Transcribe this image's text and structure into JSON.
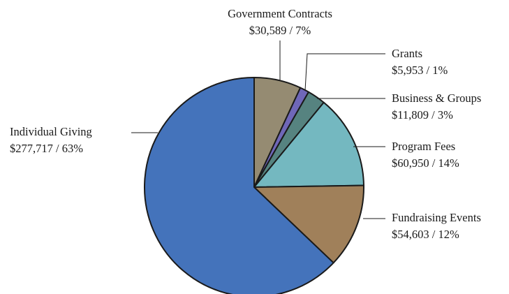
{
  "chart_data": {
    "type": "pie",
    "title": "",
    "slices": [
      {
        "name": "Government Contracts",
        "value": 30589,
        "value_label": "$30,589",
        "percent_label": "7%",
        "color": "#958b72"
      },
      {
        "name": "Grants",
        "value": 5953,
        "value_label": "$5,953",
        "percent_label": "1%",
        "color": "#6f67b8"
      },
      {
        "name": "Business & Groups",
        "value": 11809,
        "value_label": "$11,809",
        "percent_label": "3%",
        "color": "#568380"
      },
      {
        "name": "Program Fees",
        "value": 60950,
        "value_label": "$60,950",
        "percent_label": "14%",
        "color": "#74b8c0"
      },
      {
        "name": "Fundraising Events",
        "value": 54603,
        "value_label": "$54,603",
        "percent_label": "12%",
        "color": "#a0805a"
      },
      {
        "name": "Individual Giving",
        "value": 277717,
        "value_label": "$277,717",
        "percent_label": "63%",
        "color": "#4473bb"
      }
    ],
    "start_angle": "12 o'clock",
    "direction": "clockwise",
    "labels": "outside with leader lines",
    "legend": "none"
  }
}
